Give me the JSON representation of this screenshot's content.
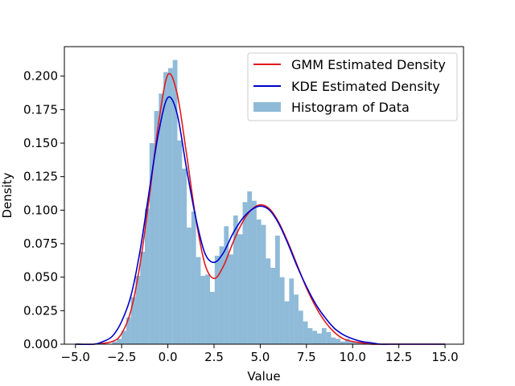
{
  "chart_data": {
    "type": "bar",
    "xlabel": "Value",
    "ylabel": "Density",
    "xlim": [
      -5.6,
      16.0
    ],
    "ylim": [
      0.0,
      0.222
    ],
    "grid": false,
    "legend_position": "top-right",
    "xticks": [
      -5.0,
      -2.5,
      0.0,
      2.5,
      5.0,
      7.5,
      10.0,
      12.5,
      15.0
    ],
    "xtick_labels": [
      "−5.0",
      "−2.5",
      "0.0",
      "2.5",
      "5.0",
      "7.5",
      "10.0",
      "12.5",
      "15.0"
    ],
    "yticks": [
      0.0,
      0.025,
      0.05,
      0.075,
      0.1,
      0.125,
      0.15,
      0.175,
      0.2
    ],
    "ytick_labels": [
      "0.000",
      "0.025",
      "0.050",
      "0.075",
      "0.100",
      "0.125",
      "0.150",
      "0.175",
      "0.200"
    ],
    "histogram": {
      "name": "Histogram of Data",
      "color": "#1f77b4",
      "bin_edges": [
        -3.01,
        -2.758,
        -2.506,
        -2.254,
        -2.002,
        -1.75,
        -1.498,
        -1.246,
        -0.994,
        -0.742,
        -0.49,
        -0.238,
        0.014,
        0.266,
        0.518,
        0.77,
        1.022,
        1.274,
        1.526,
        1.778,
        2.03,
        2.282,
        2.534,
        2.786,
        3.038,
        3.29,
        3.542,
        3.794,
        4.046,
        4.298,
        4.55,
        4.802,
        5.054,
        5.306,
        5.558,
        5.81,
        6.062,
        6.314,
        6.566,
        6.818,
        7.07,
        7.322,
        7.574,
        7.826,
        8.078,
        8.33,
        8.582,
        8.834,
        9.086,
        9.338,
        9.59,
        9.842,
        10.094,
        10.346,
        10.598
      ],
      "values": [
        0.002,
        0.004,
        0.01,
        0.02,
        0.035,
        0.051,
        0.069,
        0.101,
        0.15,
        0.174,
        0.187,
        0.203,
        0.206,
        0.212,
        0.152,
        0.131,
        0.087,
        0.099,
        0.065,
        0.051,
        0.052,
        0.039,
        0.066,
        0.073,
        0.088,
        0.067,
        0.096,
        0.082,
        0.106,
        0.114,
        0.107,
        0.093,
        0.089,
        0.064,
        0.057,
        0.081,
        0.05,
        0.032,
        0.049,
        0.037,
        0.025,
        0.017,
        0.012,
        0.01,
        0.008,
        0.012,
        0.009,
        0.005,
        0.004,
        0.002,
        0.004,
        0.002,
        0.001,
        0.001
      ]
    },
    "series": [
      {
        "name": "GMM Estimated Density",
        "color": "#e31a1c",
        "type": "line",
        "x": [
          -5.0,
          -4.0,
          -3.0,
          -2.5,
          -2.0,
          -1.5,
          -1.0,
          -0.5,
          0.0,
          0.5,
          1.0,
          1.5,
          2.0,
          2.5,
          3.0,
          3.5,
          4.0,
          4.5,
          5.0,
          5.5,
          6.0,
          6.5,
          7.0,
          7.5,
          8.0,
          8.5,
          9.0,
          9.5,
          10.0,
          10.5,
          11.0,
          11.5,
          12.0,
          13.0,
          14.0,
          15.0
        ],
        "y": [
          0.0,
          0.0,
          0.002,
          0.008,
          0.025,
          0.06,
          0.11,
          0.165,
          0.201,
          0.187,
          0.143,
          0.095,
          0.06,
          0.049,
          0.058,
          0.075,
          0.09,
          0.1,
          0.104,
          0.101,
          0.091,
          0.076,
          0.059,
          0.042,
          0.028,
          0.017,
          0.009,
          0.004,
          0.002,
          0.001,
          0.0,
          0.0,
          0.0,
          0.0,
          0.0,
          0.0
        ]
      },
      {
        "name": "KDE Estimated Density",
        "color": "#0000cc",
        "type": "line",
        "x": [
          -5.0,
          -4.0,
          -3.5,
          -3.0,
          -2.5,
          -2.0,
          -1.5,
          -1.0,
          -0.5,
          0.0,
          0.5,
          1.0,
          1.5,
          2.0,
          2.5,
          3.0,
          3.5,
          4.0,
          4.5,
          5.0,
          5.5,
          6.0,
          6.5,
          7.0,
          7.5,
          8.0,
          8.5,
          9.0,
          9.5,
          10.0,
          10.5,
          11.0,
          11.5,
          12.0,
          13.0,
          14.0,
          15.0
        ],
        "y": [
          0.0,
          0.0,
          0.002,
          0.006,
          0.017,
          0.036,
          0.07,
          0.115,
          0.158,
          0.184,
          0.172,
          0.132,
          0.095,
          0.068,
          0.061,
          0.068,
          0.082,
          0.093,
          0.1,
          0.103,
          0.1,
          0.09,
          0.075,
          0.058,
          0.043,
          0.03,
          0.02,
          0.012,
          0.007,
          0.004,
          0.002,
          0.001,
          0.0,
          0.0,
          0.0,
          0.0,
          0.0
        ]
      }
    ],
    "legend": [
      "GMM Estimated Density",
      "KDE Estimated Density",
      "Histogram of Data"
    ]
  }
}
